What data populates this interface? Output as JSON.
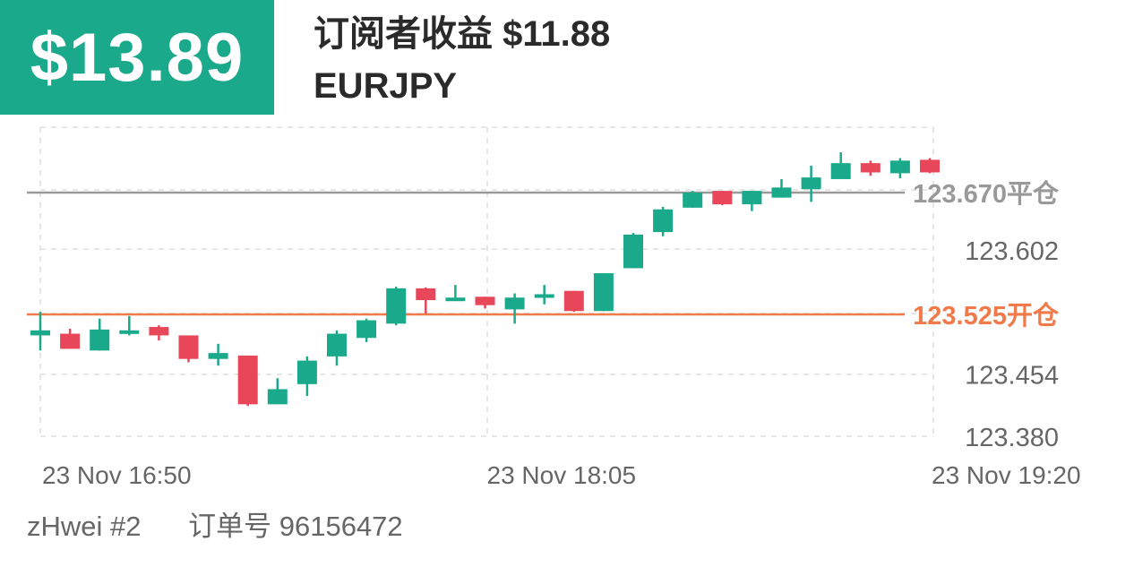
{
  "header": {
    "profit": "$13.89",
    "subscriber_profit": "订阅者收益 $11.88",
    "symbol": "EURJPY"
  },
  "footer": {
    "user": "zHwei #2",
    "order": "订单号 96156472"
  },
  "colors": {
    "up": "#1aaa8b",
    "down": "#e8475a",
    "open_line": "#f07a4a",
    "close_line": "#999999",
    "header_bg": "#1aaa8b"
  },
  "chart_data": {
    "type": "candlestick",
    "ylim": [
      123.35,
      123.75
    ],
    "y_ticks": [
      {
        "value": 123.602,
        "label": "123.602"
      },
      {
        "value": 123.454,
        "label": "123.454"
      },
      {
        "value": 123.38,
        "label": "123.380"
      }
    ],
    "x_ticks": [
      {
        "index": 0,
        "label": "23 Nov  16:50"
      },
      {
        "index": 15,
        "label": "23 Nov  18:05"
      },
      {
        "index": 30,
        "label": "23 Nov  19:20"
      }
    ],
    "reference_lines": [
      {
        "name": "close",
        "value": 123.67,
        "label": "123.670平仓",
        "color": "#999999"
      },
      {
        "name": "open",
        "value": 123.525,
        "label": "123.525开仓",
        "color": "#f07a4a"
      }
    ],
    "grid": true,
    "candles": [
      {
        "o": 123.5,
        "h": 123.528,
        "l": 123.482,
        "c": 123.506
      },
      {
        "o": 123.502,
        "h": 123.508,
        "l": 123.484,
        "c": 123.484
      },
      {
        "o": 123.482,
        "h": 123.52,
        "l": 123.482,
        "c": 123.507
      },
      {
        "o": 123.505,
        "h": 123.523,
        "l": 123.5,
        "c": 123.506
      },
      {
        "o": 123.51,
        "h": 123.512,
        "l": 123.494,
        "c": 123.5
      },
      {
        "o": 123.5,
        "h": 123.5,
        "l": 123.468,
        "c": 123.472
      },
      {
        "o": 123.472,
        "h": 123.49,
        "l": 123.464,
        "c": 123.479
      },
      {
        "o": 123.476,
        "h": 123.476,
        "l": 123.416,
        "c": 123.418
      },
      {
        "o": 123.418,
        "h": 123.449,
        "l": 123.418,
        "c": 123.436
      },
      {
        "o": 123.442,
        "h": 123.475,
        "l": 123.428,
        "c": 123.47
      },
      {
        "o": 123.475,
        "h": 123.506,
        "l": 123.464,
        "c": 123.502
      },
      {
        "o": 123.497,
        "h": 123.52,
        "l": 123.492,
        "c": 123.518
      },
      {
        "o": 123.514,
        "h": 123.558,
        "l": 123.512,
        "c": 123.556
      },
      {
        "o": 123.556,
        "h": 123.557,
        "l": 123.526,
        "c": 123.542
      },
      {
        "o": 123.543,
        "h": 123.56,
        "l": 123.542,
        "c": 123.545
      },
      {
        "o": 123.546,
        "h": 123.546,
        "l": 123.532,
        "c": 123.536
      },
      {
        "o": 123.531,
        "h": 123.55,
        "l": 123.514,
        "c": 123.545
      },
      {
        "o": 123.547,
        "h": 123.56,
        "l": 123.537,
        "c": 123.549
      },
      {
        "o": 123.553,
        "h": 123.553,
        "l": 123.528,
        "c": 123.529
      },
      {
        "o": 123.529,
        "h": 123.574,
        "l": 123.529,
        "c": 123.574
      },
      {
        "o": 123.58,
        "h": 123.622,
        "l": 123.58,
        "c": 123.62
      },
      {
        "o": 123.623,
        "h": 123.653,
        "l": 123.618,
        "c": 123.65
      },
      {
        "o": 123.652,
        "h": 123.672,
        "l": 123.652,
        "c": 123.67
      },
      {
        "o": 123.672,
        "h": 123.672,
        "l": 123.655,
        "c": 123.656
      },
      {
        "o": 123.656,
        "h": 123.672,
        "l": 123.648,
        "c": 123.672
      },
      {
        "o": 123.664,
        "h": 123.686,
        "l": 123.664,
        "c": 123.676
      },
      {
        "o": 123.674,
        "h": 123.702,
        "l": 123.659,
        "c": 123.688
      },
      {
        "o": 123.686,
        "h": 123.718,
        "l": 123.686,
        "c": 123.705
      },
      {
        "o": 123.705,
        "h": 123.708,
        "l": 123.69,
        "c": 123.694
      },
      {
        "o": 123.693,
        "h": 123.711,
        "l": 123.687,
        "c": 123.708
      },
      {
        "o": 123.709,
        "h": 123.711,
        "l": 123.693,
        "c": 123.694
      }
    ]
  }
}
